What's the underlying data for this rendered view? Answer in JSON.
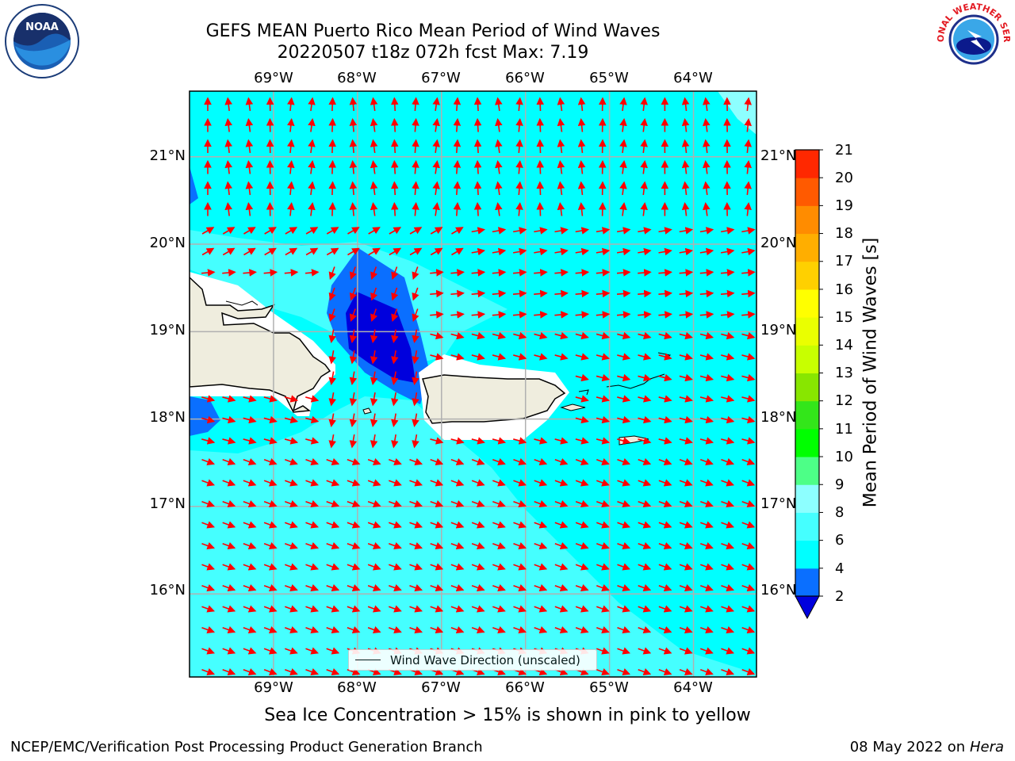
{
  "title": {
    "line1": "GEFS MEAN Puerto Rico Mean Period of Wind Waves",
    "line2": "20220507 t18z 072h fcst   Max: 7.19"
  },
  "map": {
    "lon_labels": [
      "69°W",
      "68°W",
      "67°W",
      "66°W",
      "65°W",
      "64°W"
    ],
    "lat_labels": [
      "21°N",
      "20°N",
      "19°N",
      "18°N",
      "17°N",
      "16°N"
    ],
    "lon_range": [
      -70,
      -63.25
    ],
    "lat_range": [
      15.05,
      21.75
    ],
    "arrow_color": "#ff0000",
    "land_color": "#efedde",
    "grid_color": "#b0b0b0"
  },
  "legend": {
    "label": "Wind Wave Direction (unscaled)"
  },
  "colorbar": {
    "label": "Mean Period of Wind Waves [s]",
    "ticks": [
      "21",
      "20",
      "19",
      "18",
      "17",
      "16",
      "15",
      "14",
      "13",
      "12",
      "11",
      "10",
      "9",
      "8",
      "6",
      "4",
      "2"
    ],
    "colors": [
      "#0000dd",
      "#0a6fff",
      "#00ffff",
      "#45ffff",
      "#8dffff",
      "#4dff87",
      "#00ff00",
      "#33e61a",
      "#88e600",
      "#c8ff00",
      "#eaff00",
      "#ffff00",
      "#ffd000",
      "#ffae00",
      "#ff8c00",
      "#ff5a00",
      "#ff2800",
      "#ff0000"
    ],
    "extend_color": "#0000dd"
  },
  "notes": {
    "sea_ice": "Sea Ice Concentration > 15% is shown in pink to yellow"
  },
  "footer": {
    "left": "NCEP/EMC/Verification Post Processing Product Generation Branch",
    "right_date": "08 May 2022 on",
    "right_host": "Hera"
  },
  "logos": {
    "left": "NOAA",
    "right": "NATIONAL WEATHER SERVICE"
  }
}
